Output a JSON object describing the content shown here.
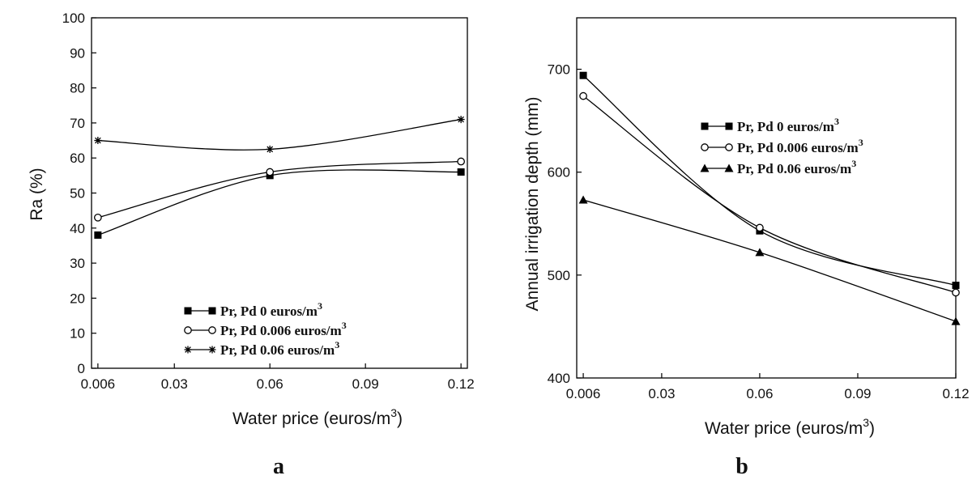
{
  "chart_data": [
    {
      "panel": "a",
      "type": "line",
      "xlabel": "Water price (euros/m",
      "xlabel_sup": "3",
      "xlabel_tail": ")",
      "ylabel": "Ra (%)",
      "xlim": [
        0.004,
        0.122
      ],
      "ylim": [
        0,
        100
      ],
      "xticks": [
        0.006,
        0.03,
        0.06,
        0.09,
        0.12
      ],
      "xtick_labels": [
        "0.006",
        "0.03",
        "0.06",
        "0.09",
        "0.12"
      ],
      "yticks": [
        0,
        10,
        20,
        30,
        40,
        50,
        60,
        70,
        80,
        90,
        100
      ],
      "ytick_labels": [
        "0",
        "10",
        "20",
        "30",
        "40",
        "50",
        "60",
        "70",
        "80",
        "90",
        "100"
      ],
      "grid": false,
      "legend_position": "center-bottom",
      "x": [
        0.006,
        0.06,
        0.12
      ],
      "series": [
        {
          "name": "Pr, Pd 0 euros/m",
          "name_sup": "3",
          "marker": "square-filled",
          "values": [
            38,
            55,
            56
          ]
        },
        {
          "name": "Pr, Pd 0.006 euros/m",
          "name_sup": "3",
          "marker": "circle-open",
          "values": [
            43,
            56,
            59
          ]
        },
        {
          "name": "Pr, Pd 0.06 euros/m",
          "name_sup": "3",
          "marker": "asterisk",
          "values": [
            65,
            62.5,
            71
          ]
        }
      ]
    },
    {
      "panel": "b",
      "type": "line",
      "xlabel": "Water price (euros/m",
      "xlabel_sup": "3",
      "xlabel_tail": ")",
      "ylabel": "Annual irrigation depth (mm)",
      "xlim": [
        0.004,
        0.12
      ],
      "ylim": [
        400,
        750
      ],
      "xticks": [
        0.006,
        0.03,
        0.06,
        0.09,
        0.12
      ],
      "xtick_labels": [
        "0.006",
        "0.03",
        "0.06",
        "0.09",
        "0.12"
      ],
      "yticks": [
        400,
        500,
        600,
        700
      ],
      "ytick_labels": [
        "400",
        "500",
        "600",
        "700"
      ],
      "grid": false,
      "legend_position": "top-right",
      "x": [
        0.006,
        0.06,
        0.12
      ],
      "series": [
        {
          "name": "Pr, Pd 0 euros/m",
          "name_sup": "3",
          "marker": "square-filled",
          "values": [
            694,
            543,
            490
          ]
        },
        {
          "name": "Pr, Pd 0.006 euros/m",
          "name_sup": "3",
          "marker": "circle-open",
          "values": [
            674,
            546,
            483
          ]
        },
        {
          "name": "Pr, Pd 0.06 euros/m",
          "name_sup": "3",
          "marker": "triangle-filled",
          "values": [
            573,
            522,
            455
          ]
        }
      ]
    }
  ]
}
